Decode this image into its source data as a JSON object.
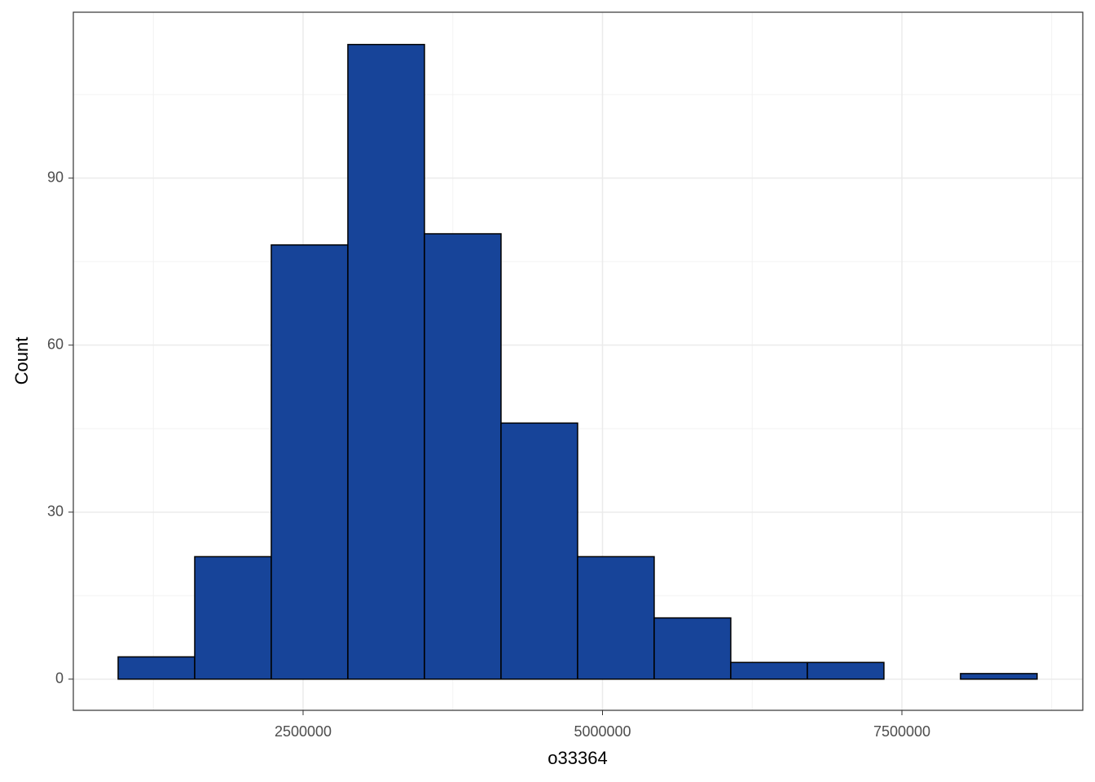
{
  "chart_data": {
    "type": "histogram",
    "x_label": "o33364",
    "y_label": "Count",
    "bins": [
      955800,
      1595200,
      2234600,
      2874000,
      3513400,
      4152800,
      4792200,
      5431600,
      6071000,
      6710400,
      7349800,
      7989200,
      8628600
    ],
    "values": [
      4,
      22,
      78,
      114,
      80,
      46,
      22,
      11,
      3,
      3,
      0,
      1
    ],
    "color": "#174499",
    "edge_color": "#000000",
    "xlim": [
      581600,
      9010200
    ],
    "xticks": [
      2500000,
      5000000,
      7500000
    ],
    "ylim": [
      -5.6,
      119.8
    ],
    "yticks": [
      0,
      30,
      60,
      90
    ],
    "grid": true
  }
}
